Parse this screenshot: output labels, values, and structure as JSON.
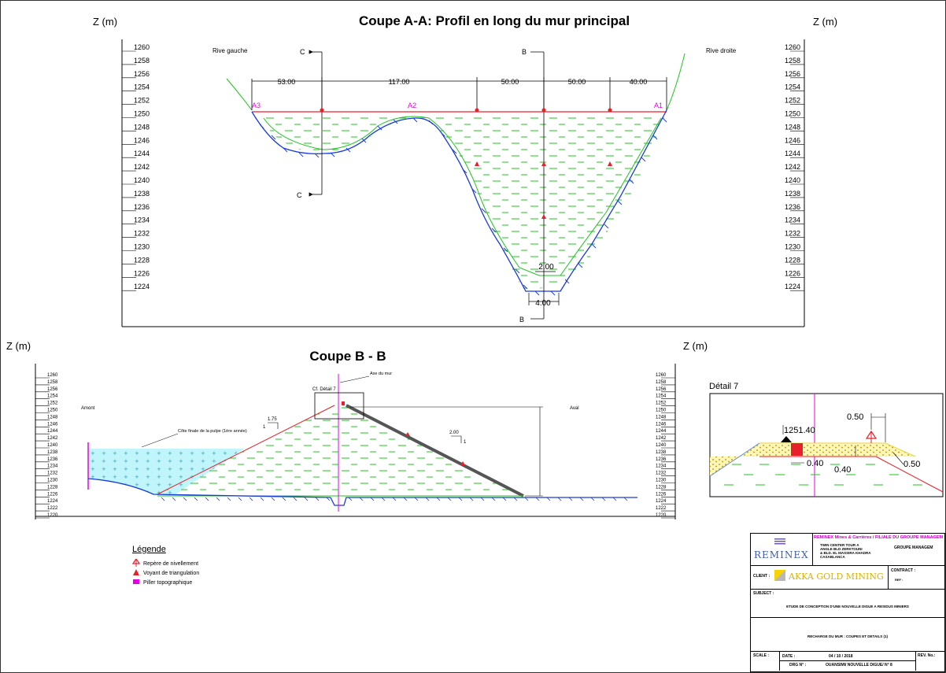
{
  "section_aa": {
    "title": "Coupe A-A: Profil en long du mur principal",
    "axis_label": "Z (m)",
    "ticks": [
      "1260",
      "1258",
      "1256",
      "1254",
      "1252",
      "1250",
      "1248",
      "1246",
      "1244",
      "1242",
      "1240",
      "1238",
      "1236",
      "1234",
      "1232",
      "1230",
      "1228",
      "1226",
      "1224"
    ],
    "rive_gauche": "Rive gauche",
    "rive_droite": "Rive droite",
    "dims": [
      "53.00",
      "117.00",
      "50.00",
      "50.00",
      "40.00"
    ],
    "points": [
      "A3",
      "A2",
      "A1"
    ],
    "section_c": "C",
    "section_b": "B",
    "base_top": "2.00",
    "base_bottom": "4.00"
  },
  "section_bb": {
    "title": "Coupe B - B",
    "axis_label": "Z (m)",
    "ticks": [
      "1260",
      "1258",
      "1256",
      "1254",
      "1252",
      "1250",
      "1248",
      "1246",
      "1244",
      "1242",
      "1240",
      "1238",
      "1236",
      "1234",
      "1232",
      "1230",
      "1228",
      "1226",
      "1224",
      "1222",
      "1220"
    ],
    "amont": "Amont",
    "aval": "Aval",
    "axe": "Axe du mur",
    "detail_ref": "Cf. Détail 7",
    "pulp": "Côte finale de la pulpe (1ère année)",
    "slope_up_h": "1.75",
    "slope_up_v": "1",
    "slope_down_h": "2.00",
    "slope_down_v": "1"
  },
  "detail7": {
    "title": "Détail 7",
    "elev": "1251.40",
    "w1": "0.50",
    "w2": "0.40",
    "w3": "0.40",
    "w4": "0.50"
  },
  "legend": {
    "title": "Légende",
    "items": [
      "Repère de nivellement",
      "Voyant de triangulation",
      "Piller topographique"
    ]
  },
  "title_block": {
    "company": "REMINEX Mines & Carrières / FILIALE DU GROUPE MANAGEM",
    "logo": "REMINEX",
    "addr1": "TWIN CENTER TOUR A",
    "addr2": "ANGLE BLD ZERKTOUNI",
    "addr3": "& BLD. EL MASSIRA KHADRA",
    "addr4": "CASABLANCA",
    "group": "GROUPE MANAGEM",
    "client_label": "CLIENT :",
    "client": "AKKA GOLD MINING",
    "contract_label": "CONTRACT :",
    "ref_label": "REF :",
    "subject_label": "SUBJECT :",
    "subject": "ETUDE DE CONCEPTION D'UNE NOUVELLE DIGUE A RESIDUS MINIERS",
    "subtitle": "RECHARGE DU MUR : COUPES ET DETAILS (1)",
    "scale_label": "SCALE :",
    "date_label": "DATE :",
    "date": "04 / 10 / 2018",
    "rev_label": "REV. No.:",
    "drg_label": "DRG N° :",
    "drg": "OUANSIMI/ NOUVELLE DIGUE/ N° 8"
  },
  "colors": {
    "fill_green": "#1fc41f",
    "line_red": "#e8202a",
    "blue": "#1a3bd6",
    "magenta": "#e600e6",
    "cyan": "#20d7e6"
  }
}
